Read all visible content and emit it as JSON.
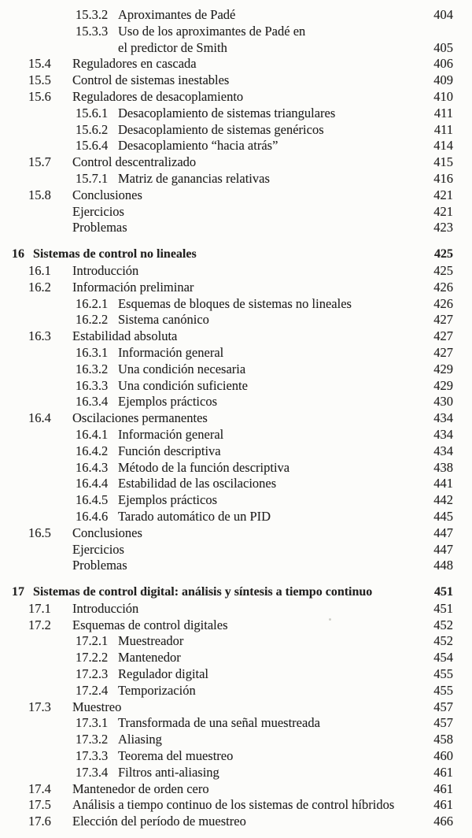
{
  "page": {
    "background_color": "#fcfcfa",
    "text_color": "#232221"
  },
  "toc": {
    "rows": [
      {
        "level": "subsection",
        "label": "15.3.2",
        "title": "Aproximantes de Padé",
        "page": "404"
      },
      {
        "level": "subsection",
        "label": "15.3.3",
        "title": "Uso de los aproximantes de Padé en",
        "page": ""
      },
      {
        "level": "continuation",
        "label": "",
        "title": "el predictor de Smith",
        "page": "405"
      },
      {
        "level": "section",
        "label": "15.4",
        "title": "Reguladores en cascada",
        "page": "406"
      },
      {
        "level": "section",
        "label": "15.5",
        "title": "Control de sistemas inestables",
        "page": "409"
      },
      {
        "level": "section",
        "label": "15.6",
        "title": "Reguladores de desacoplamiento",
        "page": "410"
      },
      {
        "level": "subsection",
        "label": "15.6.1",
        "title": "Desacoplamiento de sistemas triangulares",
        "page": "411"
      },
      {
        "level": "subsection",
        "label": "15.6.2",
        "title": "Desacoplamiento de sistemas genéricos",
        "page": "411"
      },
      {
        "level": "subsection",
        "label": "15.6.4",
        "title": "Desacoplamiento “hacia atrás”",
        "page": "414"
      },
      {
        "level": "section",
        "label": "15.7",
        "title": "Control descentralizado",
        "page": "415"
      },
      {
        "level": "subsection",
        "label": "15.7.1",
        "title": "Matriz de ganancias relativas",
        "page": "416"
      },
      {
        "level": "section",
        "label": "15.8",
        "title": "Conclusiones",
        "page": "421"
      },
      {
        "level": "plain",
        "label": "",
        "title": "Ejercicios",
        "page": "421"
      },
      {
        "level": "plain",
        "label": "",
        "title": "Problemas",
        "page": "423"
      },
      {
        "level": "chapter",
        "label": "16",
        "title": "Sistemas de control no lineales",
        "page": "425"
      },
      {
        "level": "section",
        "label": "16.1",
        "title": "Introducción",
        "page": "425"
      },
      {
        "level": "section",
        "label": "16.2",
        "title": "Información preliminar",
        "page": "426"
      },
      {
        "level": "subsection",
        "label": "16.2.1",
        "title": "Esquemas de bloques de sistemas no lineales",
        "page": "426"
      },
      {
        "level": "subsection",
        "label": "16.2.2",
        "title": "Sistema canónico",
        "page": "427"
      },
      {
        "level": "section",
        "label": "16.3",
        "title": "Estabilidad absoluta",
        "page": "427"
      },
      {
        "level": "subsection",
        "label": "16.3.1",
        "title": "Información general",
        "page": "427"
      },
      {
        "level": "subsection",
        "label": "16.3.2",
        "title": "Una condición necesaria",
        "page": "429"
      },
      {
        "level": "subsection",
        "label": "16.3.3",
        "title": "Una condición suficiente",
        "page": "429"
      },
      {
        "level": "subsection",
        "label": "16.3.4",
        "title": "Ejemplos prácticos",
        "page": "430"
      },
      {
        "level": "section",
        "label": "16.4",
        "title": "Oscilaciones permanentes",
        "page": "434"
      },
      {
        "level": "subsection",
        "label": "16.4.1",
        "title": "Información general",
        "page": "434"
      },
      {
        "level": "subsection",
        "label": "16.4.2",
        "title": "Función descriptiva",
        "page": "434"
      },
      {
        "level": "subsection",
        "label": "16.4.3",
        "title": "Método de la función descriptiva",
        "page": "438"
      },
      {
        "level": "subsection",
        "label": "16.4.4",
        "title": "Estabilidad de las oscilaciones",
        "page": "441"
      },
      {
        "level": "subsection",
        "label": "16.4.5",
        "title": "Ejemplos prácticos",
        "page": "442"
      },
      {
        "level": "subsection",
        "label": "16.4.6",
        "title": "Tarado automático de un PID",
        "page": "445"
      },
      {
        "level": "section",
        "label": "16.5",
        "title": "Conclusiones",
        "page": "447"
      },
      {
        "level": "plain",
        "label": "",
        "title": "Ejercicios",
        "page": "447"
      },
      {
        "level": "plain",
        "label": "",
        "title": "Problemas",
        "page": "448"
      },
      {
        "level": "chapter",
        "label": "17",
        "title": "Sistemas de control digital: análisis y síntesis a tiempo continuo",
        "page": "451"
      },
      {
        "level": "section",
        "label": "17.1",
        "title": "Introducción",
        "page": "451"
      },
      {
        "level": "section",
        "label": "17.2",
        "title": "Esquemas de control digitales",
        "page": "452"
      },
      {
        "level": "subsection",
        "label": "17.2.1",
        "title": "Muestreador",
        "page": "452"
      },
      {
        "level": "subsection",
        "label": "17.2.2",
        "title": "Mantenedor",
        "page": "454"
      },
      {
        "level": "subsection",
        "label": "17.2.3",
        "title": "Regulador digital",
        "page": "455"
      },
      {
        "level": "subsection",
        "label": "17.2.4",
        "title": "Temporización",
        "page": "455"
      },
      {
        "level": "section",
        "label": "17.3",
        "title": "Muestreo",
        "page": "457"
      },
      {
        "level": "subsection",
        "label": "17.3.1",
        "title": "Transformada de una señal muestreada",
        "page": "457"
      },
      {
        "level": "subsection",
        "label": "17.3.2",
        "title": "Aliasing",
        "page": "458"
      },
      {
        "level": "subsection",
        "label": "17.3.3",
        "title": "Teorema del muestreo",
        "page": "460"
      },
      {
        "level": "subsection",
        "label": "17.3.4",
        "title": "Filtros anti-aliasing",
        "page": "461"
      },
      {
        "level": "section",
        "label": "17.4",
        "title": "Mantenedor de orden cero",
        "page": "461"
      },
      {
        "level": "section",
        "label": "17.5",
        "title": "Análisis a tiempo continuo de los sistemas de control híbridos",
        "page": "461"
      },
      {
        "level": "section",
        "label": "17.6",
        "title": "Elección del período de muestreo",
        "page": "466"
      }
    ]
  }
}
